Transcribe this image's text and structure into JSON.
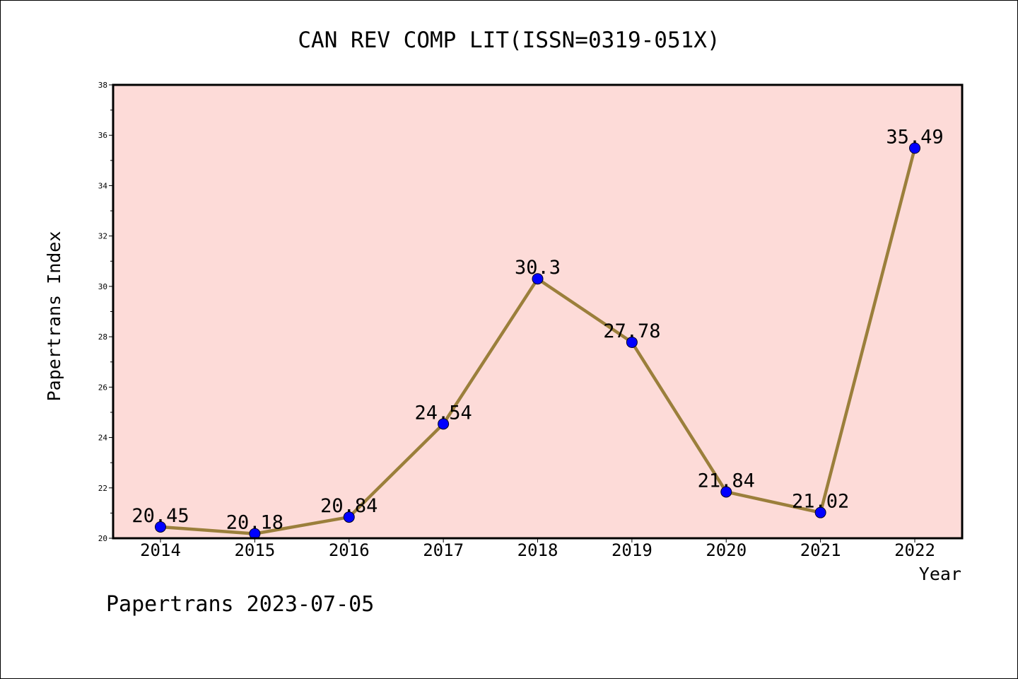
{
  "chart_data": {
    "type": "line",
    "title": "CAN REV COMP LIT(ISSN=0319-051X)",
    "xlabel": "Year",
    "ylabel": "Papertrans Index",
    "categories": [
      "2014",
      "2015",
      "2016",
      "2017",
      "2018",
      "2019",
      "2020",
      "2021",
      "2022"
    ],
    "series": [
      {
        "values": [
          20.45,
          20.18,
          20.84,
          24.54,
          30.3,
          27.78,
          21.84,
          21.02,
          35.49
        ],
        "labels": [
          "20.45",
          "20.18",
          "20.84",
          "24.54",
          "30.3",
          "27.78",
          "21.84",
          "21.02",
          "35.49"
        ]
      }
    ],
    "ylim": [
      20,
      38
    ],
    "yticks": [
      20,
      22,
      24,
      26,
      28,
      30,
      32,
      34,
      36,
      38
    ],
    "grid": false,
    "plot_background": "#fddbd8",
    "line_color": "#9b7f3b",
    "marker_color": "#0000ff",
    "footer": "Papertrans 2023-07-05"
  }
}
